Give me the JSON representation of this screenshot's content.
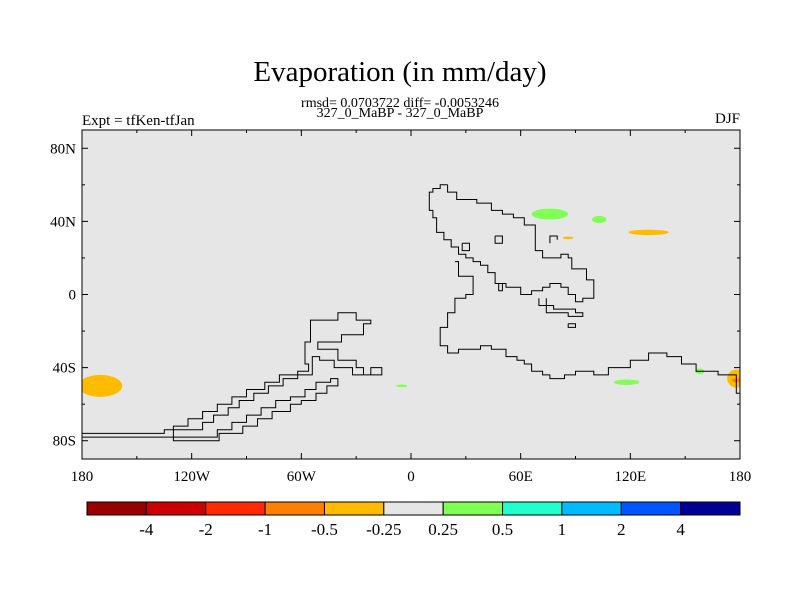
{
  "header": {
    "title": "Evaporation (in mm/day)",
    "stats": "rmsd= 0.0703722 diff= -0.0053246",
    "subtitle": "327_0_MaBP - 327_0_MaBP",
    "left_label": "Expt = tfKen-tfJan",
    "right_label": "DJF"
  },
  "chart_data": {
    "type": "heatmap",
    "title": "Evaporation (in mm/day)",
    "subtitle": "327_0_MaBP - 327_0_MaBP",
    "variable_units": "mm/day",
    "stats": {
      "rmsd": 0.0703722,
      "diff": -0.0053246
    },
    "season": "DJF",
    "experiment": "tfKen-tfJan",
    "xlim": [
      -180,
      180
    ],
    "ylim": [
      -90,
      90
    ],
    "x_ticks": [
      -180,
      -120,
      -60,
      0,
      60,
      120,
      180
    ],
    "x_tick_labels": [
      "180",
      "120W",
      "60W",
      "0",
      "60E",
      "120E",
      "180"
    ],
    "y_ticks": [
      80,
      40,
      0,
      -40,
      -80
    ],
    "y_tick_labels": [
      "80N",
      "40N",
      "0",
      "40S",
      "80S"
    ],
    "background_color": "#e6e6e6",
    "colorbar": {
      "colors": [
        "#990000",
        "#cc0000",
        "#ff2a00",
        "#ff8000",
        "#ffbb00",
        "#e6e6e6",
        "#80ff55",
        "#22ffcc",
        "#00bbff",
        "#0055ff",
        "#000099"
      ],
      "levels": [
        -4,
        -2,
        -1,
        -0.5,
        -0.25,
        0.25,
        0.5,
        1,
        2,
        4
      ],
      "labels": [
        "-4",
        "-2",
        "-1",
        "-0.5",
        "-0.25",
        "0.25",
        "0.5",
        "1",
        "2",
        "4"
      ]
    },
    "anomaly_regions": [
      {
        "lon": -170,
        "lat": -50,
        "dlon": 24,
        "dlat": 12,
        "value": -0.3
      },
      {
        "lon": 178,
        "lat": -46,
        "dlon": 10,
        "dlat": 10,
        "value": -0.3
      },
      {
        "lon": 178,
        "lat": -47,
        "dlon": 5,
        "dlat": 2,
        "value": -1.0
      },
      {
        "lon": 76,
        "lat": 44,
        "dlon": 20,
        "dlat": 6,
        "value": 0.3
      },
      {
        "lon": 103,
        "lat": 41,
        "dlon": 8,
        "dlat": 4,
        "value": 0.3
      },
      {
        "lon": 130,
        "lat": 34,
        "dlon": 22,
        "dlat": 3,
        "value": -0.3
      },
      {
        "lon": 86,
        "lat": 31,
        "dlon": 6,
        "dlat": 1.5,
        "value": -0.3
      },
      {
        "lon": 118,
        "lat": -48,
        "dlon": 14,
        "dlat": 3,
        "value": 0.3
      },
      {
        "lon": 158,
        "lat": -42,
        "dlon": 5,
        "dlat": 3,
        "value": 0.3
      },
      {
        "lon": -5,
        "lat": -50,
        "dlon": 6,
        "dlat": 1.5,
        "value": 0.3
      }
    ],
    "coastlines": [
      [
        [
          -180,
          -76
        ],
        [
          -135,
          -76
        ],
        [
          -135,
          -74
        ],
        [
          -114,
          -74
        ],
        [
          -114,
          -70
        ],
        [
          -108,
          -70
        ],
        [
          -108,
          -66
        ],
        [
          -100,
          -66
        ],
        [
          -100,
          -62
        ],
        [
          -94,
          -62
        ],
        [
          -94,
          -58
        ],
        [
          -86,
          -58
        ],
        [
          -86,
          -54
        ],
        [
          -78,
          -54
        ],
        [
          -78,
          -50
        ],
        [
          -70,
          -50
        ],
        [
          -70,
          -46
        ],
        [
          -62,
          -46
        ],
        [
          -62,
          -42
        ],
        [
          -56,
          -42
        ],
        [
          -56,
          -38
        ],
        [
          -58,
          -38
        ],
        [
          -58,
          -26
        ],
        [
          -55,
          -26
        ],
        [
          -55,
          -14
        ],
        [
          -40,
          -14
        ],
        [
          -40,
          -10
        ],
        [
          -30,
          -10
        ],
        [
          -30,
          -14
        ],
        [
          -22,
          -14
        ],
        [
          -22,
          -16
        ],
        [
          -26,
          -16
        ],
        [
          -26,
          -22
        ],
        [
          -38,
          -22
        ],
        [
          -38,
          -26
        ],
        [
          -51,
          -26
        ],
        [
          -51,
          -30
        ],
        [
          -40,
          -30
        ],
        [
          -40,
          -36
        ],
        [
          -30,
          -36
        ],
        [
          -30,
          -40
        ],
        [
          -26,
          -40
        ],
        [
          -26,
          -44
        ],
        [
          -22,
          -44
        ],
        [
          -22,
          -40
        ],
        [
          -16,
          -40
        ],
        [
          -16,
          -44
        ],
        [
          -32,
          -44
        ],
        [
          -32,
          -40
        ],
        [
          -42,
          -40
        ],
        [
          -42,
          -36
        ],
        [
          -50,
          -36
        ],
        [
          -50,
          -34
        ],
        [
          -54,
          -34
        ],
        [
          -54,
          -44
        ],
        [
          -72,
          -44
        ],
        [
          -72,
          -48
        ],
        [
          -80,
          -48
        ],
        [
          -80,
          -52
        ],
        [
          -90,
          -52
        ],
        [
          -90,
          -56
        ],
        [
          -98,
          -56
        ],
        [
          -98,
          -60
        ],
        [
          -106,
          -60
        ],
        [
          -106,
          -64
        ],
        [
          -114,
          -64
        ],
        [
          -114,
          -68
        ],
        [
          -122,
          -68
        ],
        [
          -122,
          -72
        ],
        [
          -130,
          -72
        ],
        [
          -130,
          -80
        ],
        [
          -105,
          -80
        ],
        [
          -105,
          -76
        ],
        [
          -92,
          -76
        ],
        [
          -92,
          -72
        ],
        [
          -84,
          -72
        ],
        [
          -84,
          -68
        ],
        [
          -76,
          -68
        ],
        [
          -76,
          -64
        ],
        [
          -66,
          -64
        ],
        [
          -66,
          -60
        ],
        [
          -60,
          -60
        ],
        [
          -60,
          -58
        ],
        [
          -52,
          -58
        ],
        [
          -52,
          -54
        ],
        [
          -46,
          -54
        ],
        [
          -46,
          -50
        ],
        [
          -40,
          -50
        ],
        [
          -40,
          -46
        ],
        [
          -44,
          -46
        ],
        [
          -44,
          -48
        ],
        [
          -52,
          -48
        ],
        [
          -52,
          -52
        ],
        [
          -58,
          -52
        ],
        [
          -58,
          -56
        ],
        [
          -66,
          -56
        ],
        [
          -66,
          -58
        ],
        [
          -74,
          -58
        ],
        [
          -74,
          -62
        ],
        [
          -82,
          -62
        ],
        [
          -82,
          -66
        ],
        [
          -90,
          -66
        ],
        [
          -90,
          -70
        ],
        [
          -98,
          -70
        ],
        [
          -98,
          -74
        ],
        [
          -106,
          -74
        ],
        [
          -106,
          -78
        ],
        [
          -180,
          -78
        ]
      ],
      [
        [
          20,
          60
        ],
        [
          20,
          56
        ],
        [
          25,
          56
        ],
        [
          25,
          52
        ],
        [
          36,
          52
        ],
        [
          36,
          50
        ],
        [
          44,
          50
        ],
        [
          44,
          46
        ],
        [
          50,
          46
        ],
        [
          50,
          44
        ],
        [
          56,
          44
        ],
        [
          56,
          42
        ],
        [
          62,
          42
        ],
        [
          62,
          38
        ],
        [
          68,
          38
        ],
        [
          68,
          24
        ],
        [
          72,
          24
        ],
        [
          72,
          20
        ],
        [
          82,
          20
        ],
        [
          82,
          22
        ],
        [
          86,
          22
        ],
        [
          86,
          20
        ],
        [
          88,
          20
        ],
        [
          88,
          14
        ],
        [
          96,
          14
        ],
        [
          96,
          8
        ],
        [
          100,
          8
        ],
        [
          100,
          -2
        ],
        [
          94,
          -2
        ],
        [
          94,
          -4
        ],
        [
          90,
          -4
        ],
        [
          90,
          0
        ],
        [
          86,
          0
        ],
        [
          86,
          4
        ],
        [
          82,
          4
        ],
        [
          82,
          6
        ],
        [
          76,
          6
        ],
        [
          76,
          4
        ],
        [
          72,
          4
        ],
        [
          72,
          2
        ],
        [
          66,
          2
        ],
        [
          66,
          0
        ],
        [
          60,
          0
        ],
        [
          60,
          4
        ],
        [
          52,
          4
        ],
        [
          52,
          6
        ],
        [
          46,
          6
        ],
        [
          46,
          12
        ],
        [
          42,
          12
        ],
        [
          42,
          16
        ],
        [
          38,
          16
        ],
        [
          38,
          18
        ],
        [
          34,
          18
        ],
        [
          34,
          20
        ],
        [
          30,
          20
        ],
        [
          30,
          22
        ],
        [
          26,
          22
        ],
        [
          26,
          26
        ],
        [
          22,
          26
        ],
        [
          22,
          30
        ],
        [
          18,
          30
        ],
        [
          18,
          34
        ],
        [
          14,
          34
        ],
        [
          14,
          42
        ],
        [
          12,
          42
        ],
        [
          12,
          46
        ],
        [
          10,
          46
        ],
        [
          10,
          56
        ],
        [
          12,
          56
        ],
        [
          12,
          58
        ],
        [
          16,
          58
        ],
        [
          16,
          60
        ],
        [
          20,
          60
        ]
      ],
      [
        [
          24,
          18
        ],
        [
          26,
          18
        ],
        [
          26,
          10
        ],
        [
          34,
          10
        ],
        [
          34,
          0
        ],
        [
          30,
          0
        ],
        [
          30,
          -2
        ],
        [
          24,
          -2
        ],
        [
          24,
          -10
        ],
        [
          20,
          -10
        ],
        [
          20,
          -18
        ],
        [
          16,
          -18
        ],
        [
          16,
          -28
        ],
        [
          20,
          -28
        ],
        [
          20,
          -32
        ],
        [
          26,
          -32
        ],
        [
          26,
          -30
        ],
        [
          38,
          -30
        ],
        [
          38,
          -28
        ],
        [
          44,
          -28
        ],
        [
          44,
          -30
        ],
        [
          52,
          -30
        ],
        [
          52,
          -34
        ],
        [
          58,
          -34
        ],
        [
          58,
          -36
        ],
        [
          62,
          -36
        ],
        [
          62,
          -38
        ],
        [
          66,
          -38
        ],
        [
          66,
          -42
        ],
        [
          72,
          -42
        ],
        [
          72,
          -44
        ],
        [
          76,
          -44
        ],
        [
          76,
          -46
        ],
        [
          84,
          -46
        ],
        [
          84,
          -44
        ],
        [
          90,
          -44
        ],
        [
          90,
          -42
        ],
        [
          100,
          -42
        ],
        [
          100,
          -44
        ],
        [
          108,
          -44
        ],
        [
          108,
          -40
        ],
        [
          120,
          -40
        ],
        [
          120,
          -36
        ],
        [
          130,
          -36
        ],
        [
          130,
          -32
        ],
        [
          140,
          -32
        ],
        [
          140,
          -34
        ],
        [
          148,
          -34
        ],
        [
          148,
          -38
        ],
        [
          156,
          -38
        ],
        [
          156,
          -42
        ],
        [
          168,
          -42
        ],
        [
          168,
          -44
        ],
        [
          178,
          -44
        ],
        [
          178,
          -54
        ],
        [
          180,
          -54
        ],
        [
          180,
          -70
        ]
      ],
      [
        [
          74,
          -2
        ],
        [
          74,
          -6
        ],
        [
          78,
          -6
        ],
        [
          78,
          -8
        ],
        [
          90,
          -8
        ],
        [
          90,
          -10
        ],
        [
          94,
          -10
        ],
        [
          94,
          -12
        ],
        [
          86,
          -12
        ],
        [
          86,
          -10
        ],
        [
          74,
          -10
        ],
        [
          74,
          -6
        ],
        [
          70,
          -6
        ],
        [
          70,
          -2
        ]
      ],
      [
        [
          80,
          30
        ],
        [
          80,
          32
        ],
        [
          76,
          32
        ],
        [
          76,
          28
        ]
      ],
      [
        [
          46,
          32
        ],
        [
          50,
          32
        ],
        [
          50,
          28
        ],
        [
          46,
          28
        ],
        [
          46,
          32
        ]
      ],
      [
        [
          28,
          28
        ],
        [
          32,
          28
        ],
        [
          32,
          24
        ],
        [
          28,
          24
        ],
        [
          28,
          28
        ]
      ],
      [
        [
          86,
          -16
        ],
        [
          90,
          -16
        ],
        [
          90,
          -18
        ],
        [
          86,
          -18
        ],
        [
          86,
          -16
        ]
      ],
      [
        [
          48,
          6
        ],
        [
          50,
          6
        ],
        [
          50,
          2
        ],
        [
          48,
          2
        ],
        [
          48,
          6
        ]
      ]
    ]
  }
}
